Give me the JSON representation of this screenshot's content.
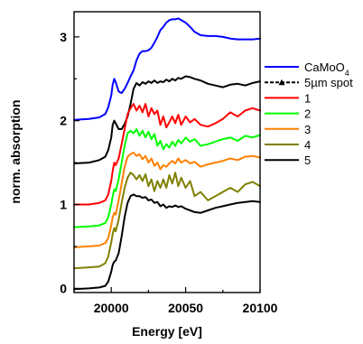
{
  "chart_data": {
    "type": "line",
    "title": "",
    "xlabel": "Energy [eV]",
    "ylabel": "norm. absorption",
    "xlim": [
      19975,
      20100
    ],
    "ylim": [
      -0.05,
      3.3
    ],
    "x_ticks": [
      20000,
      20050,
      20100
    ],
    "y_ticks": [
      0,
      1,
      2,
      3
    ],
    "legend_position": "right",
    "grid": false,
    "series": [
      {
        "name": "CaMoO4",
        "color": "#0000ff",
        "marker": "none",
        "x": [
          19975,
          19985,
          19992,
          19996,
          19998,
          20000,
          20001,
          20002,
          20003,
          20005,
          20007,
          20009,
          20011,
          20013,
          20015,
          20017,
          20019,
          20021,
          20023,
          20025,
          20027,
          20029,
          20031,
          20033,
          20035,
          20037,
          20039,
          20041,
          20043,
          20045,
          20047,
          20050,
          20053,
          20056,
          20060,
          20065,
          20070,
          20075,
          20080,
          20085,
          20090,
          20095,
          20100
        ],
        "y": [
          2.01,
          2.02,
          2.04,
          2.08,
          2.16,
          2.3,
          2.43,
          2.5,
          2.46,
          2.35,
          2.33,
          2.38,
          2.45,
          2.53,
          2.6,
          2.72,
          2.8,
          2.83,
          2.83,
          2.84,
          2.87,
          2.93,
          3.0,
          3.08,
          3.12,
          3.17,
          3.2,
          3.21,
          3.21,
          3.22,
          3.2,
          3.17,
          3.12,
          3.06,
          3.02,
          3.01,
          3.01,
          3.0,
          2.98,
          2.97,
          2.97,
          2.97,
          2.98
        ]
      },
      {
        "name": "5µm spot",
        "color": "#000000",
        "marker": "triangle",
        "x": [
          19975,
          19985,
          19992,
          19996,
          19998,
          20000,
          20001,
          20002,
          20003,
          20005,
          20007,
          20009,
          20011,
          20013,
          20015,
          20017,
          20019,
          20021,
          20023,
          20025,
          20027,
          20029,
          20031,
          20033,
          20035,
          20037,
          20039,
          20041,
          20043,
          20045,
          20047,
          20050,
          20053,
          20056,
          20060,
          20065,
          20070,
          20075,
          20080,
          20085,
          20090,
          20095,
          20100
        ],
        "y": [
          1.49,
          1.5,
          1.53,
          1.57,
          1.65,
          1.8,
          1.95,
          2.0,
          1.97,
          1.9,
          1.9,
          1.96,
          2.05,
          2.2,
          2.38,
          2.45,
          2.42,
          2.46,
          2.44,
          2.47,
          2.45,
          2.48,
          2.45,
          2.47,
          2.46,
          2.49,
          2.47,
          2.5,
          2.48,
          2.51,
          2.5,
          2.53,
          2.52,
          2.5,
          2.48,
          2.44,
          2.42,
          2.4,
          2.43,
          2.44,
          2.42,
          2.45,
          2.47
        ]
      },
      {
        "name": "1",
        "color": "#ff0000",
        "marker": "none",
        "x": [
          19975,
          19985,
          19992,
          19996,
          19998,
          20000,
          20001,
          20002,
          20003,
          20005,
          20007,
          20009,
          20011,
          20013,
          20015,
          20017,
          20019,
          20021,
          20023,
          20025,
          20027,
          20029,
          20031,
          20033,
          20035,
          20037,
          20039,
          20041,
          20043,
          20045,
          20047,
          20050,
          20053,
          20056,
          20060,
          20065,
          20070,
          20075,
          20080,
          20085,
          20090,
          20095,
          20100
        ],
        "y": [
          1.0,
          1.0,
          1.02,
          1.05,
          1.12,
          1.28,
          1.4,
          1.5,
          1.47,
          1.55,
          1.72,
          1.9,
          2.08,
          2.15,
          2.2,
          2.12,
          2.18,
          2.1,
          2.2,
          2.05,
          2.15,
          2.08,
          2.12,
          1.95,
          2.05,
          1.92,
          1.98,
          2.05,
          1.97,
          2.07,
          1.95,
          2.05,
          1.98,
          2.02,
          1.95,
          1.93,
          1.97,
          2.02,
          2.1,
          2.05,
          2.12,
          2.15,
          2.12
        ]
      },
      {
        "name": "2",
        "color": "#00ff00",
        "marker": "none",
        "x": [
          19975,
          19985,
          19992,
          19996,
          19998,
          20000,
          20001,
          20002,
          20003,
          20005,
          20007,
          20009,
          20011,
          20013,
          20015,
          20017,
          20019,
          20021,
          20023,
          20025,
          20027,
          20029,
          20031,
          20033,
          20035,
          20037,
          20039,
          20041,
          20043,
          20045,
          20047,
          20050,
          20053,
          20056,
          20060,
          20065,
          20070,
          20075,
          20080,
          20085,
          20090,
          20095,
          20100
        ],
        "y": [
          0.73,
          0.74,
          0.75,
          0.78,
          0.85,
          1.0,
          1.1,
          1.18,
          1.16,
          1.3,
          1.5,
          1.7,
          1.85,
          1.88,
          1.85,
          1.9,
          1.82,
          1.88,
          1.8,
          1.87,
          1.78,
          1.84,
          1.7,
          1.76,
          1.66,
          1.72,
          1.68,
          1.75,
          1.7,
          1.77,
          1.73,
          1.8,
          1.75,
          1.78,
          1.7,
          1.72,
          1.75,
          1.78,
          1.8,
          1.76,
          1.82,
          1.8,
          1.83
        ]
      },
      {
        "name": "3",
        "color": "#ff8000",
        "marker": "none",
        "x": [
          19975,
          19985,
          19992,
          19996,
          19998,
          20000,
          20001,
          20002,
          20003,
          20005,
          20007,
          20009,
          20011,
          20013,
          20015,
          20017,
          20019,
          20021,
          20023,
          20025,
          20027,
          20029,
          20031,
          20033,
          20035,
          20037,
          20039,
          20041,
          20043,
          20045,
          20047,
          20050,
          20053,
          20056,
          20060,
          20065,
          20070,
          20075,
          20080,
          20085,
          20090,
          20095,
          20100
        ],
        "y": [
          0.49,
          0.5,
          0.51,
          0.54,
          0.6,
          0.75,
          0.85,
          0.9,
          0.88,
          1.05,
          1.25,
          1.45,
          1.57,
          1.6,
          1.62,
          1.58,
          1.6,
          1.54,
          1.58,
          1.5,
          1.55,
          1.46,
          1.5,
          1.42,
          1.47,
          1.45,
          1.49,
          1.52,
          1.49,
          1.55,
          1.5,
          1.53,
          1.49,
          1.51,
          1.45,
          1.48,
          1.5,
          1.52,
          1.55,
          1.53,
          1.57,
          1.58,
          1.56
        ]
      },
      {
        "name": "4",
        "color": "#808000",
        "marker": "none",
        "x": [
          19975,
          19985,
          19992,
          19996,
          19998,
          20000,
          20001,
          20002,
          20003,
          20005,
          20007,
          20009,
          20011,
          20013,
          20015,
          20017,
          20019,
          20021,
          20023,
          20025,
          20027,
          20029,
          20031,
          20033,
          20035,
          20037,
          20039,
          20041,
          20043,
          20045,
          20047,
          20050,
          20053,
          20056,
          20060,
          20065,
          20070,
          20075,
          20080,
          20085,
          20090,
          20095,
          20100
        ],
        "y": [
          0.24,
          0.25,
          0.26,
          0.3,
          0.38,
          0.55,
          0.65,
          0.72,
          0.68,
          0.82,
          1.02,
          1.2,
          1.32,
          1.38,
          1.35,
          1.3,
          1.35,
          1.28,
          1.36,
          1.22,
          1.3,
          1.16,
          1.28,
          1.2,
          1.3,
          1.2,
          1.35,
          1.25,
          1.38,
          1.22,
          1.32,
          1.2,
          1.28,
          1.1,
          1.15,
          1.05,
          1.1,
          1.15,
          1.2,
          1.15,
          1.24,
          1.27,
          1.22
        ]
      },
      {
        "name": "5",
        "color": "#000000",
        "marker": "none",
        "x": [
          19975,
          19985,
          19992,
          19996,
          19998,
          20000,
          20001,
          20002,
          20003,
          20005,
          20007,
          20009,
          20011,
          20013,
          20015,
          20017,
          20019,
          20021,
          20023,
          20025,
          20027,
          20029,
          20031,
          20033,
          20035,
          20037,
          20039,
          20041,
          20043,
          20045,
          20047,
          20050,
          20053,
          20056,
          20060,
          20065,
          20070,
          20075,
          20080,
          20085,
          20090,
          20095,
          20100
        ],
        "y": [
          -0.01,
          0.0,
          0.01,
          0.03,
          0.08,
          0.2,
          0.28,
          0.32,
          0.33,
          0.42,
          0.62,
          0.85,
          1.02,
          1.1,
          1.12,
          1.1,
          1.1,
          1.08,
          1.09,
          1.05,
          1.06,
          1.02,
          1.03,
          0.98,
          1.0,
          0.96,
          0.98,
          0.97,
          0.99,
          0.97,
          0.98,
          0.95,
          0.93,
          0.91,
          0.9,
          0.93,
          0.96,
          0.98,
          1.0,
          1.02,
          1.03,
          1.04,
          1.03
        ]
      }
    ]
  }
}
